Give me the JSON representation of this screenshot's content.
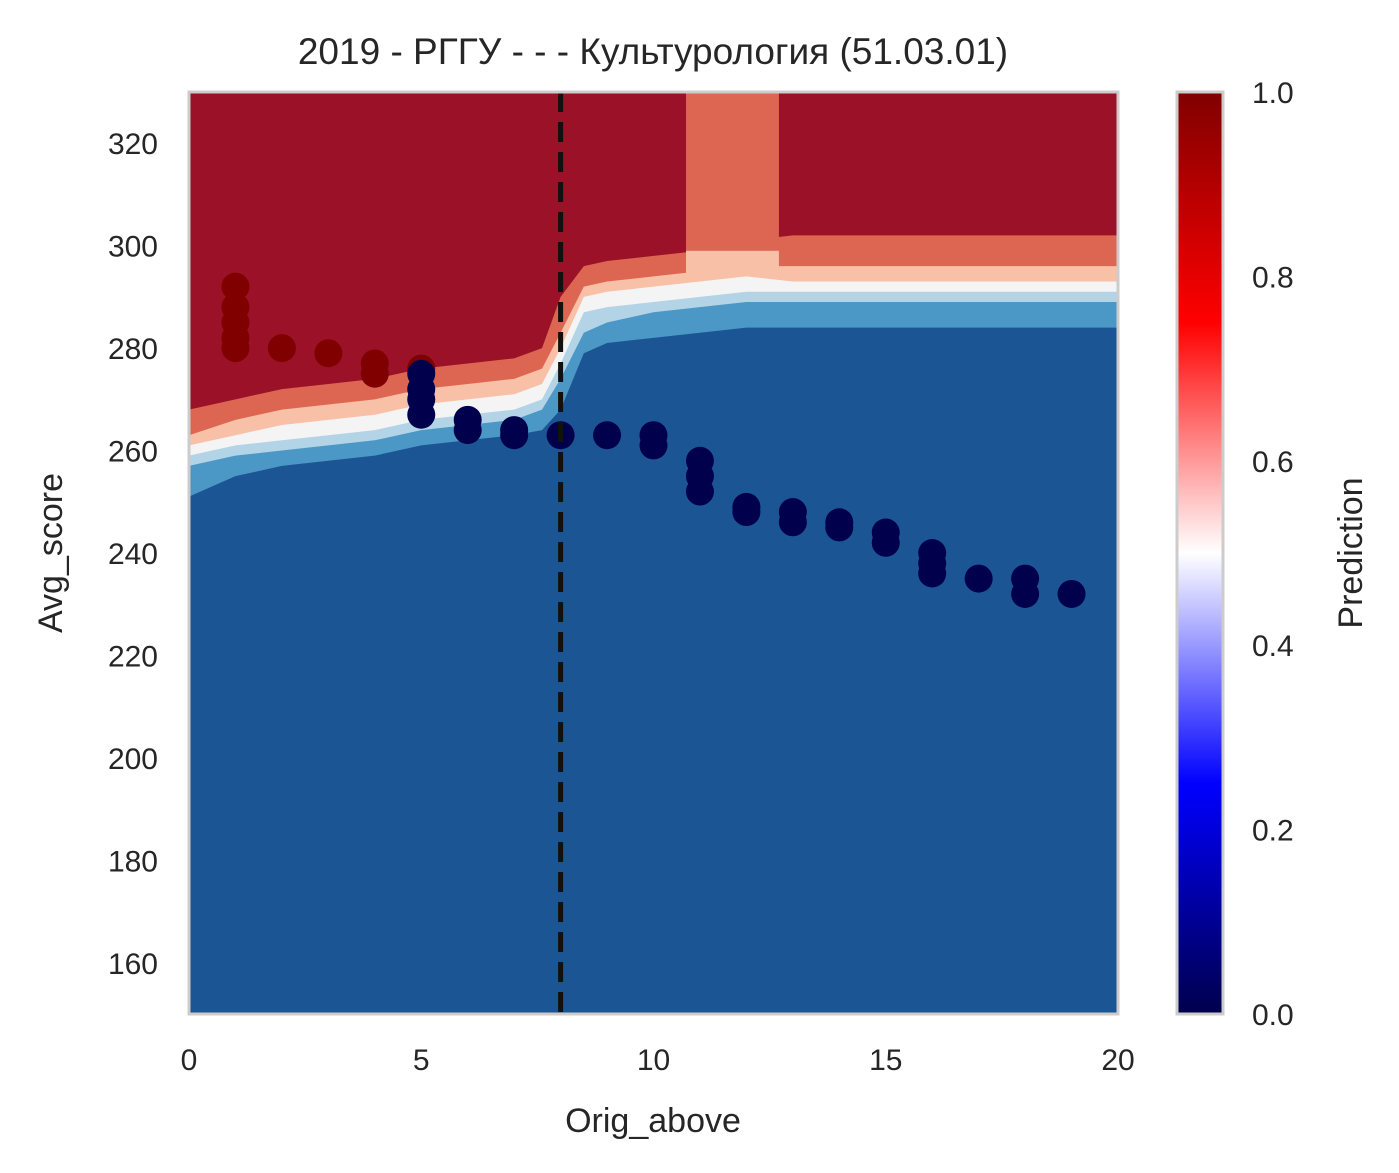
{
  "chart_data": {
    "type": "heatmap",
    "title": "2019 - РГГУ - - - Культурология (51.03.01)",
    "xlabel": "Orig_above",
    "ylabel": "Avg_score",
    "xlim": [
      0,
      20
    ],
    "ylim": [
      150,
      330
    ],
    "xticks": [
      0,
      5,
      10,
      15,
      20
    ],
    "yticks": [
      160,
      180,
      200,
      220,
      240,
      260,
      280,
      300,
      320
    ],
    "grid": false,
    "threshold_line": {
      "x": 8,
      "style": "dashed",
      "color": "#111111"
    },
    "colorbar": {
      "label": "Prediction",
      "range": [
        0,
        1
      ],
      "ticks": [
        0.0,
        0.2,
        0.4,
        0.6,
        0.8,
        1.0
      ],
      "tick_labels": [
        "0.0",
        "0.2",
        "0.4",
        "0.6",
        "0.8",
        "1.0"
      ],
      "colormap": "seismic"
    },
    "contour_colors": {
      "very_high": "#9b1127",
      "high": "#dd6652",
      "mid_high": "#f8c0a6",
      "mid": "#f4f4f4",
      "mid_low": "#b3d3e6",
      "low": "#4b97c5",
      "very_low": "#1b5594"
    },
    "decision_boundary": {
      "x": [
        0,
        1,
        2,
        3,
        4,
        5,
        6,
        7,
        7.6,
        8,
        8.5,
        9,
        10,
        11,
        12,
        13,
        14,
        16,
        18,
        20
      ],
      "level_high_upper": [
        268,
        270,
        272,
        273,
        274,
        276,
        277,
        278,
        280,
        290,
        296,
        297,
        298,
        299,
        301,
        302,
        302,
        302,
        302,
        302
      ],
      "level_high_lower": [
        263,
        266,
        268,
        269,
        270,
        272,
        273,
        274,
        276,
        283,
        292,
        293,
        294,
        295,
        296,
        296,
        296,
        296,
        296,
        296
      ],
      "level_mid_high_lower": [
        261,
        263,
        265,
        266,
        267,
        269,
        270,
        271,
        273,
        280,
        290,
        291,
        292,
        293,
        294,
        293,
        293,
        293,
        293,
        293
      ],
      "level_mid_lower": [
        259,
        261,
        262,
        263,
        264,
        266,
        267,
        268,
        270,
        277,
        287,
        288,
        289,
        290,
        291,
        291,
        291,
        291,
        291,
        291
      ],
      "level_mid_low_lower": [
        257,
        259,
        260,
        261,
        262,
        264,
        265,
        266,
        268,
        274,
        283,
        285,
        287,
        288,
        289,
        289,
        289,
        289,
        289,
        289
      ],
      "level_low_lower": [
        251,
        255,
        257,
        258,
        259,
        261,
        262,
        263,
        264,
        268,
        279,
        281,
        282,
        283,
        284,
        284,
        284,
        284,
        284,
        284
      ]
    },
    "high_plateau_gap": {
      "x_start": 10.7,
      "x_end": 12.7,
      "color_level": "high"
    },
    "series": [
      {
        "color": "#800000",
        "points": [
          [
            1,
            292
          ],
          [
            1,
            288
          ],
          [
            1,
            285
          ],
          [
            1,
            282
          ],
          [
            1,
            280
          ],
          [
            2,
            280
          ],
          [
            3,
            279
          ],
          [
            4,
            277
          ],
          [
            4,
            275
          ],
          [
            5,
            276
          ]
        ]
      },
      {
        "color": "#00004d",
        "points": [
          [
            5,
            275
          ],
          [
            5,
            272
          ],
          [
            5,
            270
          ],
          [
            5,
            267
          ],
          [
            6,
            266
          ],
          [
            6,
            264
          ],
          [
            7,
            264
          ],
          [
            7,
            263
          ],
          [
            8,
            263
          ],
          [
            9,
            263
          ],
          [
            10,
            263
          ],
          [
            10,
            261
          ],
          [
            11,
            258
          ],
          [
            11,
            255
          ],
          [
            11,
            252
          ],
          [
            12,
            249
          ],
          [
            12,
            248
          ],
          [
            13,
            248
          ],
          [
            13,
            246
          ],
          [
            14,
            246
          ],
          [
            14,
            245
          ],
          [
            15,
            244
          ],
          [
            15,
            242
          ],
          [
            16,
            240
          ],
          [
            16,
            238
          ],
          [
            16,
            236
          ],
          [
            17,
            235
          ],
          [
            18,
            235
          ],
          [
            18,
            232
          ],
          [
            19,
            232
          ]
        ]
      }
    ]
  }
}
